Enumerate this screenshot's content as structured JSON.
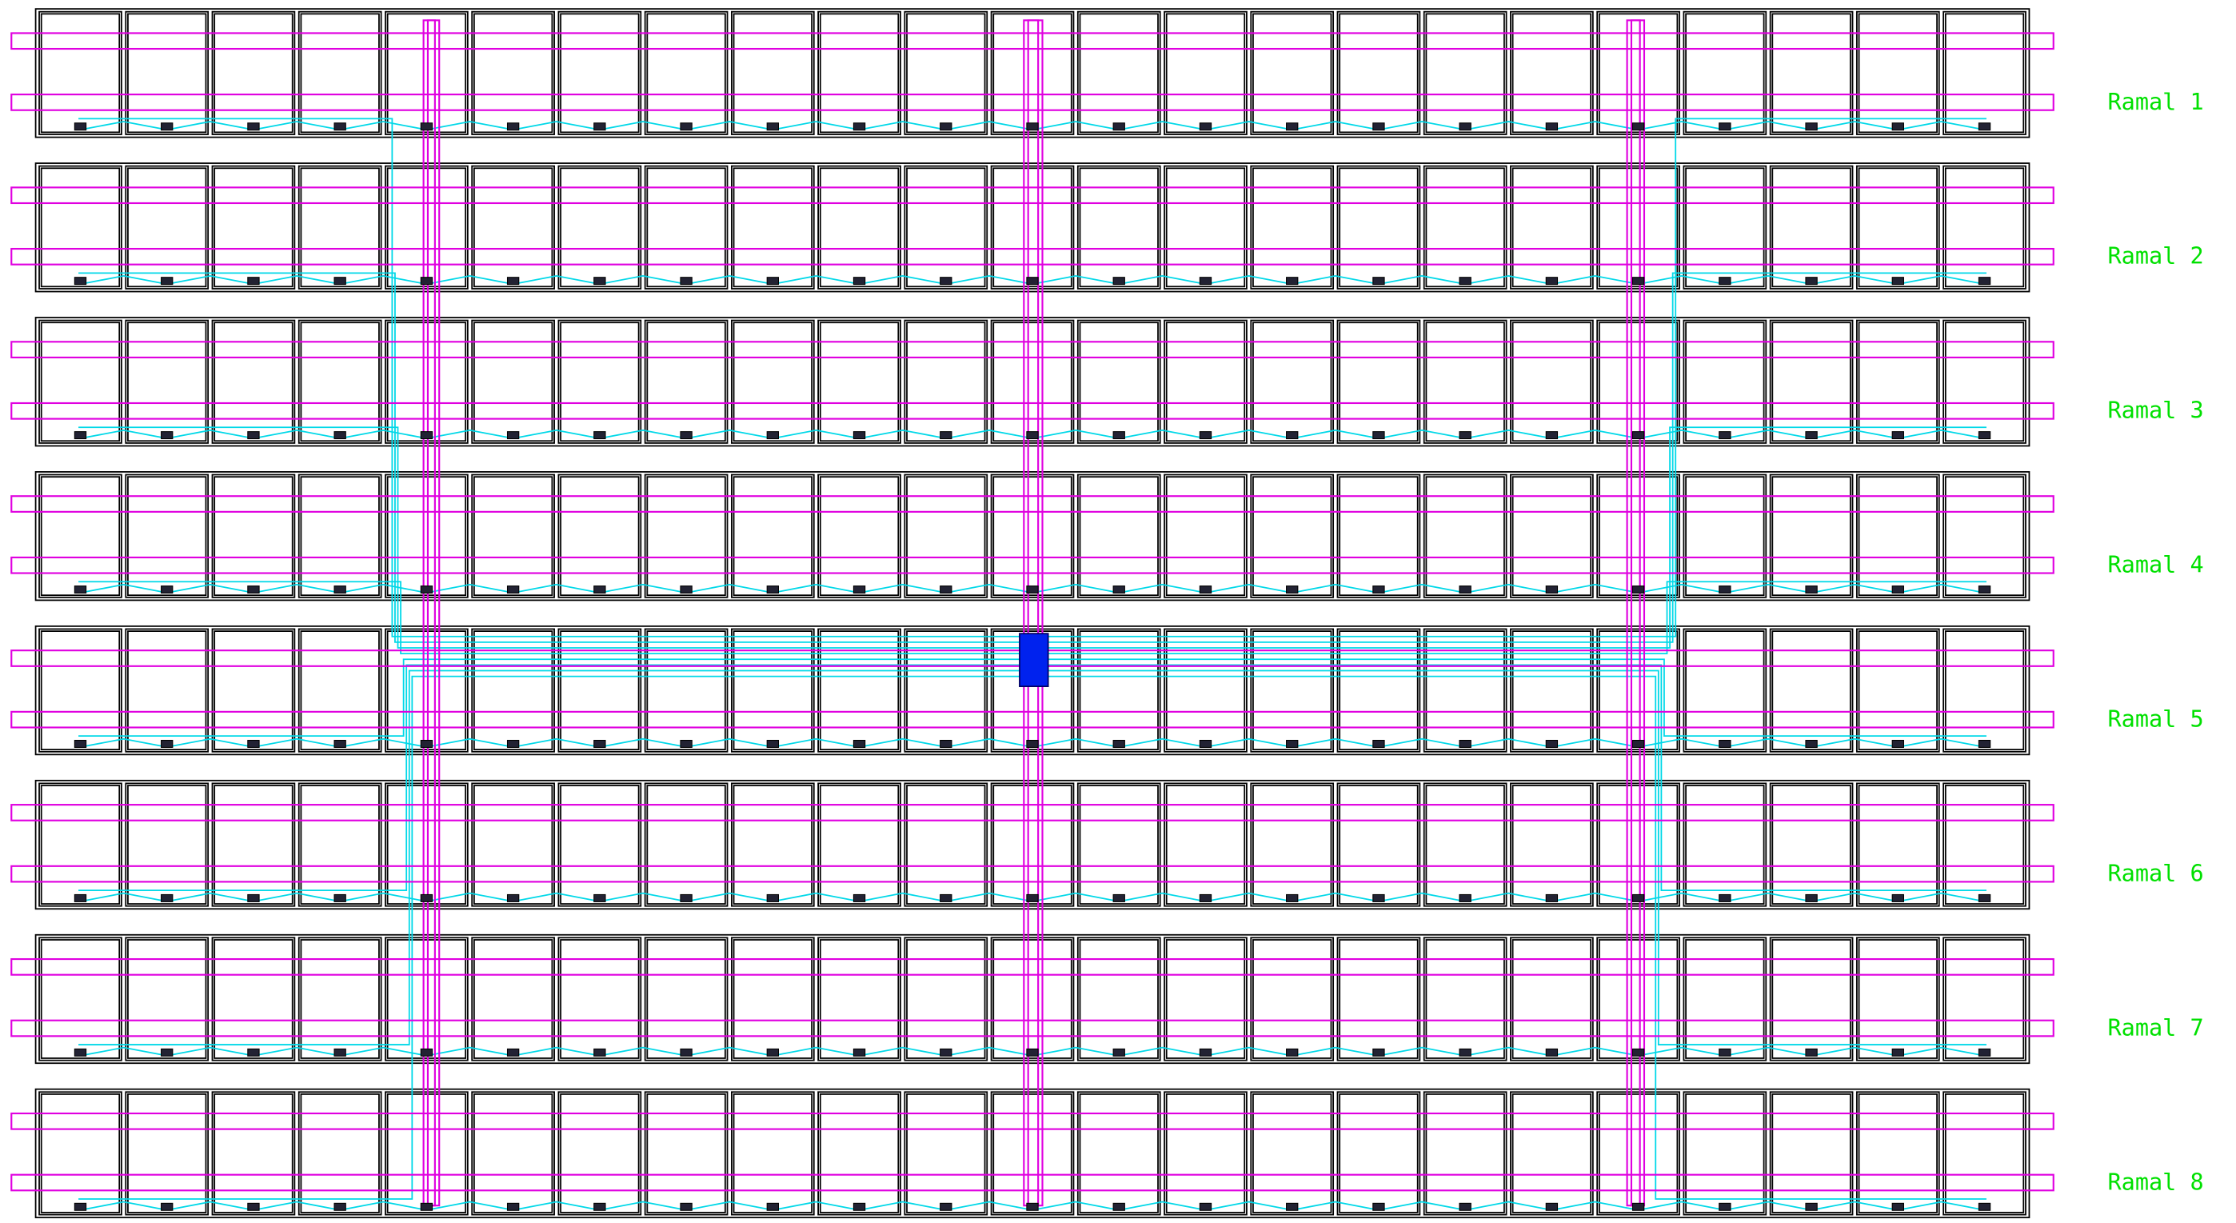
{
  "labels": [
    "Ramal 1",
    "Ramal 2",
    "Ramal 3",
    "Ramal 4",
    "Ramal 5",
    "Ramal 6",
    "Ramal 7",
    "Ramal 8"
  ]
}
